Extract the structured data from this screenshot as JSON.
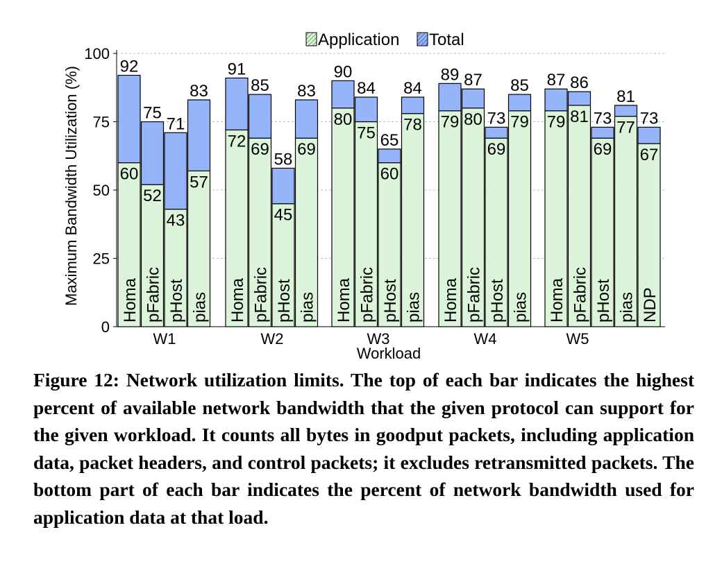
{
  "chart_data": {
    "type": "bar",
    "stacked": true,
    "xlabel": "Workload",
    "ylabel": "Maximum Bandwidth Utilization (%)",
    "ylim": [
      0,
      100
    ],
    "yticks": [
      0,
      25,
      50,
      75,
      100
    ],
    "grid": true,
    "legend": {
      "placement": "top-center",
      "entries": [
        "Application",
        "Total"
      ]
    },
    "colors": {
      "application": "#dcf5da",
      "total": "#96b4fa",
      "edge": "#000000",
      "grid": "#bbbbbb"
    },
    "series": [
      {
        "name": "Application",
        "field": "application"
      },
      {
        "name": "Total",
        "field": "total"
      }
    ],
    "groups": [
      {
        "label": "W1",
        "bars": [
          {
            "protocol": "Homa",
            "application": 60,
            "total": 92
          },
          {
            "protocol": "pFabric",
            "application": 52,
            "total": 75
          },
          {
            "protocol": "pHost",
            "application": 43,
            "total": 71
          },
          {
            "protocol": "pias",
            "application": 57,
            "total": 83
          }
        ]
      },
      {
        "label": "W2",
        "bars": [
          {
            "protocol": "Homa",
            "application": 72,
            "total": 91
          },
          {
            "protocol": "pFabric",
            "application": 69,
            "total": 85
          },
          {
            "protocol": "pHost",
            "application": 45,
            "total": 58
          },
          {
            "protocol": "pias",
            "application": 69,
            "total": 83
          }
        ]
      },
      {
        "label": "W3",
        "bars": [
          {
            "protocol": "Homa",
            "application": 80,
            "total": 90
          },
          {
            "protocol": "pFabric",
            "application": 75,
            "total": 84
          },
          {
            "protocol": "pHost",
            "application": 60,
            "total": 65
          },
          {
            "protocol": "pias",
            "application": 78,
            "total": 84
          }
        ]
      },
      {
        "label": "W4",
        "bars": [
          {
            "protocol": "Homa",
            "application": 79,
            "total": 89
          },
          {
            "protocol": "pFabric",
            "application": 80,
            "total": 87
          },
          {
            "protocol": "pHost",
            "application": 69,
            "total": 73
          },
          {
            "protocol": "pias",
            "application": 79,
            "total": 85
          }
        ]
      },
      {
        "label": "W5",
        "bars": [
          {
            "protocol": "Homa",
            "application": 79,
            "total": 87
          },
          {
            "protocol": "pFabric",
            "application": 81,
            "total": 86
          },
          {
            "protocol": "pHost",
            "application": 69,
            "total": 73
          },
          {
            "protocol": "pias",
            "application": 77,
            "total": 81
          },
          {
            "protocol": "NDP",
            "application": 67,
            "total": 73
          }
        ]
      }
    ]
  },
  "caption": "Figure 12: Network utilization limits. The top of each bar indicates the highest percent of available network bandwidth that the given protocol can support for the given workload. It counts all bytes in goodput packets, including application data, packet headers, and control packets; it excludes retransmitted packets. The bottom part of each bar indicates the percent of network bandwidth used for application data at that load."
}
